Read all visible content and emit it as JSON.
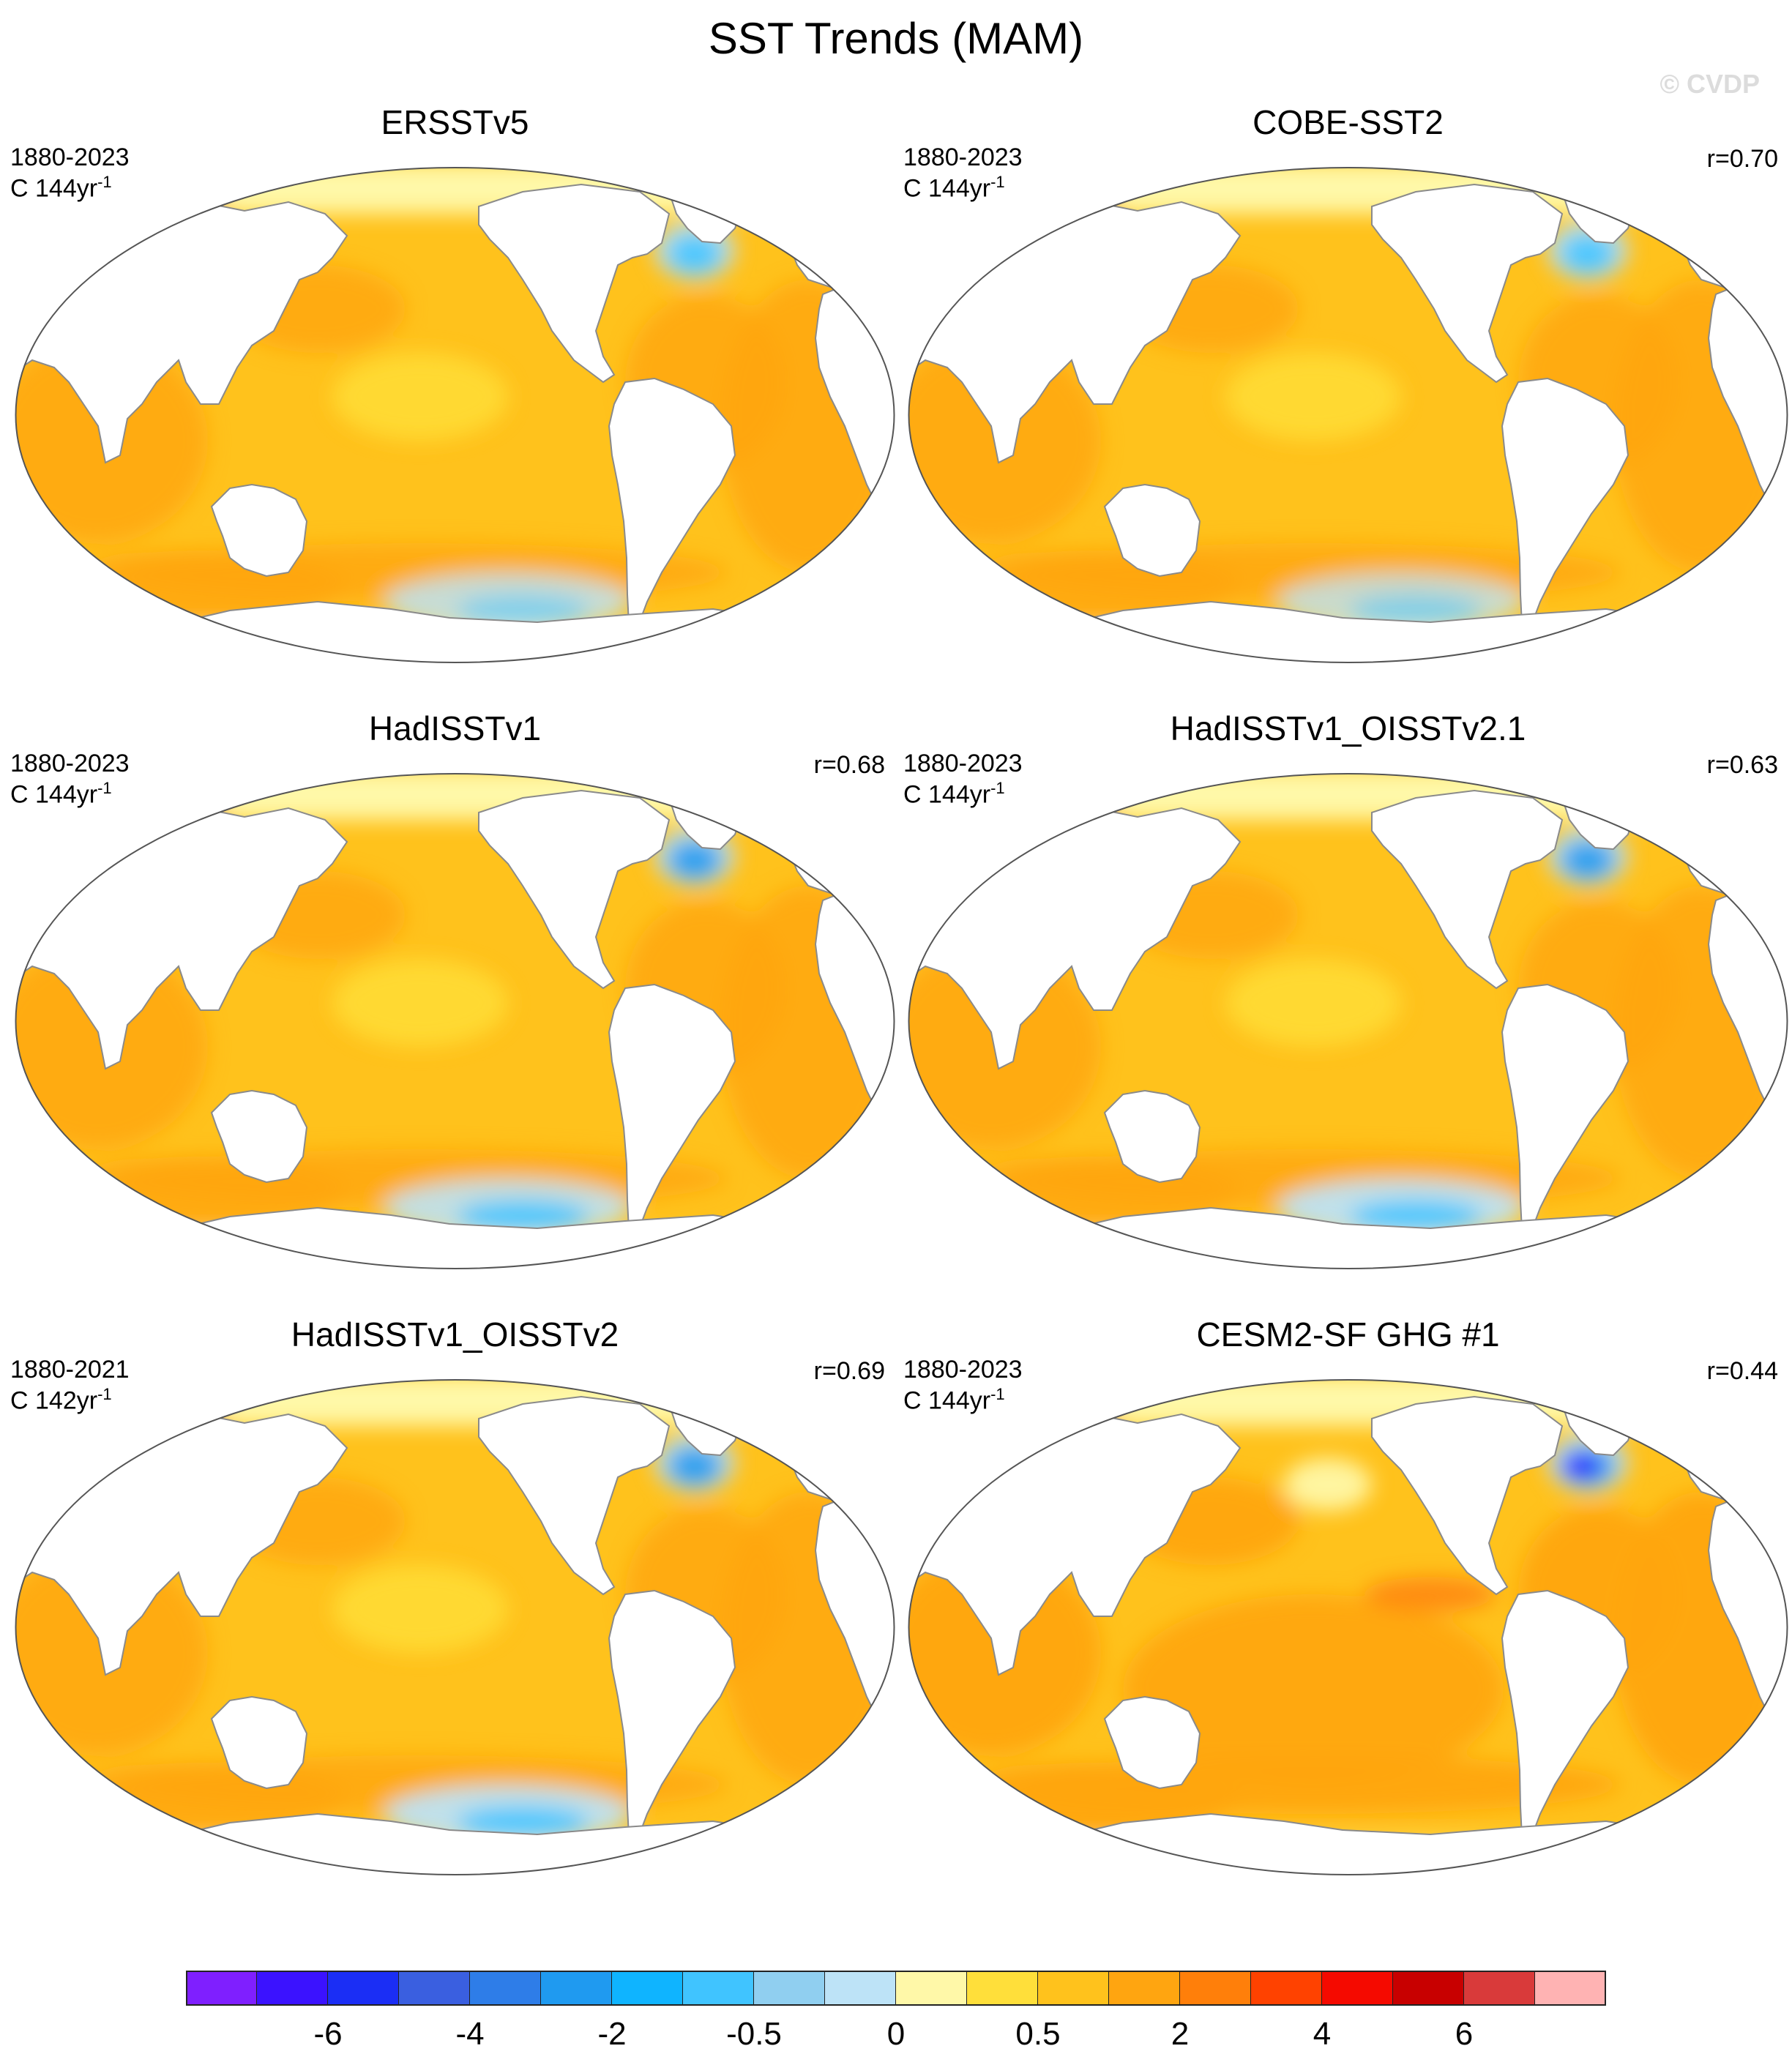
{
  "title": "SST Trends (MAM)",
  "watermark": "© CVDP",
  "panels": [
    {
      "title": "ERSSTv5",
      "period": "1880-2023",
      "units": "C 144yr",
      "units_exp": "-1",
      "corr": ""
    },
    {
      "title": "COBE-SST2",
      "period": "1880-2023",
      "units": "C 144yr",
      "units_exp": "-1",
      "corr": "r=0.70"
    },
    {
      "title": "HadISSTv1",
      "period": "1880-2023",
      "units": "C 144yr",
      "units_exp": "-1",
      "corr": "r=0.68"
    },
    {
      "title": "HadISSTv1_OISSTv2.1",
      "period": "1880-2023",
      "units": "C 144yr",
      "units_exp": "-1",
      "corr": "r=0.63"
    },
    {
      "title": "HadISSTv1_OISSTv2",
      "period": "1880-2021",
      "units": "C 142yr",
      "units_exp": "-1",
      "corr": "r=0.69"
    },
    {
      "title": "CESM2-SF GHG #1",
      "period": "1880-2023",
      "units": "C 144yr",
      "units_exp": "-1",
      "corr": "r=0.44"
    }
  ],
  "colorbar": {
    "colors": [
      "#7f1fff",
      "#3b12ff",
      "#1b2ef5",
      "#3a5fe0",
      "#2e7de8",
      "#1f9af0",
      "#0fb4ff",
      "#40c4ff",
      "#90cff0",
      "#bde3f7",
      "#fff8a8",
      "#ffdf3a",
      "#ffc21c",
      "#ffa510",
      "#ff7f0a",
      "#ff4200",
      "#f50a00",
      "#c80000",
      "#d93a3a",
      "#ffb3b3"
    ],
    "labels": [
      "-6",
      "-4",
      "-2",
      "-0.5",
      "0",
      "0.5",
      "2",
      "4",
      "6"
    ]
  },
  "map_colors": {
    "ocean": "#ffc21c",
    "ocean_dark": "#ffa510",
    "ocean_pale": "#ffdf3a",
    "ice": "#fff8a8",
    "cold": "#bde3f7",
    "cold2": "#40c4ff",
    "cold3": "#1f9af0",
    "deep_cold": "#3b12ff",
    "warm": "#ff7f0a",
    "land": "#ffffff",
    "coast": "#8a8a8a"
  }
}
